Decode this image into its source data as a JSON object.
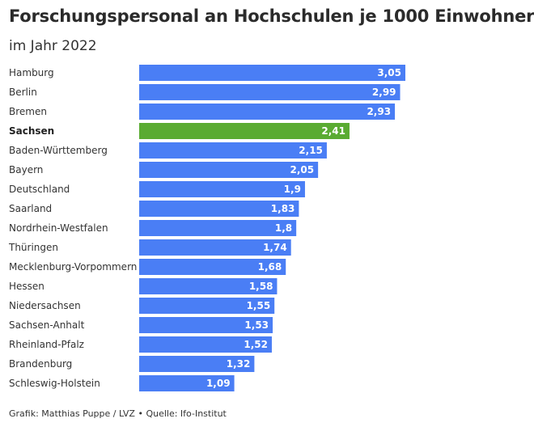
{
  "title": "Forschungspersonal an Hochschulen je 1000 Einwohner",
  "subtitle": "im Jahr 2022",
  "footer": "Grafik: Matthias Puppe / LVZ • Quelle: Ifo-Institut",
  "colors": {
    "bar": "#4a7ef5",
    "highlight": "#5aab32"
  },
  "chart_data": {
    "type": "bar",
    "orientation": "horizontal",
    "title": "Forschungspersonal an Hochschulen je 1000 Einwohner",
    "subtitle": "im Jahr 2022",
    "categories": [
      "Hamburg",
      "Berlin",
      "Bremen",
      "Sachsen",
      "Baden-Württemberg",
      "Bayern",
      "Deutschland",
      "Saarland",
      "Nordrhein-Westfalen",
      "Thüringen",
      "Mecklenburg-Vorpommern",
      "Hessen",
      "Niedersachsen",
      "Sachsen-Anhalt",
      "Rheinland-Pfalz",
      "Brandenburg",
      "Schleswig-Holstein"
    ],
    "values": [
      3.05,
      2.99,
      2.93,
      2.41,
      2.15,
      2.05,
      1.9,
      1.83,
      1.8,
      1.74,
      1.68,
      1.58,
      1.55,
      1.53,
      1.52,
      1.32,
      1.09
    ],
    "value_labels": [
      "3,05",
      "2,99",
      "2,93",
      "2,41",
      "2,15",
      "2,05",
      "1,9",
      "1,83",
      "1,8",
      "1,74",
      "1,68",
      "1,58",
      "1,55",
      "1,53",
      "1,52",
      "1,32",
      "1,09"
    ],
    "highlight": "Sachsen",
    "xlim": [
      0,
      3.05
    ],
    "grid": false
  }
}
